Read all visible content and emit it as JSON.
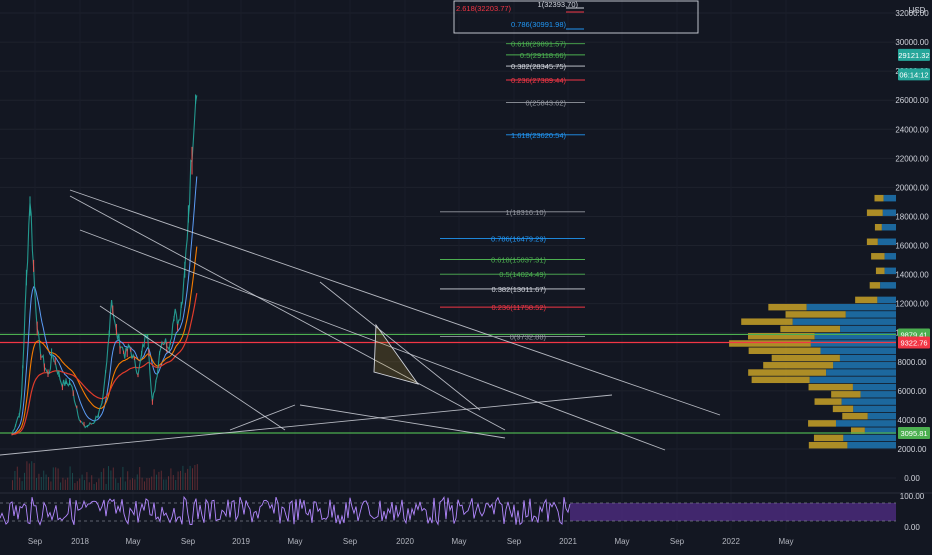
{
  "currency": "USD",
  "colors": {
    "background": "#131722",
    "up": "#26a69a",
    "down": "#ef5350",
    "trendline": "#d1d4dc",
    "support_green": "#4caf50",
    "support_red": "#f23645",
    "ema_red": "#e03b2b",
    "ema_orange": "#f57c00",
    "ema_blue": "#2962ff",
    "fib_blue": "#2196f3",
    "fib_green": "#4caf50",
    "fib_red": "#f23645",
    "vp_gold": "#c9a227",
    "vp_blue": "#1f77b4",
    "rsi": "#b388ff",
    "rsi_band": "#4a2a7a"
  },
  "chart_data": {
    "type": "candlestick",
    "series": [
      {
        "name": "price",
        "x": [
          "2017-08",
          "2017-10",
          "2017-12",
          "2018-01",
          "2018-02",
          "2018-04",
          "2018-05",
          "2018-07",
          "2018-09",
          "2018-11",
          "2018-12",
          "2019-02",
          "2019-04",
          "2019-05",
          "2019-06",
          "2019-07",
          "2019-09",
          "2019-10",
          "2019-12",
          "2020-01",
          "2020-02",
          "2020-03",
          "2020-04",
          "2020-05",
          "2020-07",
          "2020-08",
          "2020-09",
          "2020-10",
          "2020-11",
          "2020-12",
          "2021-01"
        ],
        "values": [
          3000,
          4800,
          19500,
          13000,
          9000,
          7000,
          8500,
          6500,
          6500,
          4000,
          3500,
          3800,
          5000,
          8000,
          12500,
          10000,
          8500,
          9000,
          7200,
          9000,
          10300,
          5000,
          7000,
          9500,
          9200,
          11800,
          10500,
          13000,
          18000,
          23600,
          28000
        ]
      }
    ],
    "y_ticks": [
      "32000.00",
      "30000.00",
      "28000.00",
      "26000.00",
      "24000.00",
      "22000.00",
      "20000.00",
      "18000.00",
      "16000.00",
      "14000.00",
      "12000.00",
      "10000.00",
      "8000.00",
      "6000.00",
      "4000.00",
      "2000.00",
      "0.00"
    ],
    "ylim": [
      -500,
      33000
    ],
    "x_ticks": [
      "Sep",
      "2018",
      "May",
      "Sep",
      "2019",
      "May",
      "Sep",
      "2020",
      "May",
      "Sep",
      "2021",
      "May",
      "Sep",
      "2022",
      "May"
    ],
    "price_badges": [
      {
        "value": 29121.32,
        "label": "29121.32",
        "color": "#26a69a"
      },
      {
        "value": 27780,
        "label": "06:14:12",
        "color": "#26a69a"
      },
      {
        "value": 9879.41,
        "label": "9879.41",
        "color": "#4caf50"
      },
      {
        "value": 9322.76,
        "label": "9322.76",
        "color": "#f23645"
      },
      {
        "value": 3095.81,
        "label": "3095.81",
        "color": "#4caf50"
      }
    ],
    "horizontal_levels": [
      {
        "value": 9879.41,
        "color": "#4caf50"
      },
      {
        "value": 9322.76,
        "color": "#f23645"
      },
      {
        "value": 3095.81,
        "color": "#4caf50"
      }
    ],
    "fib_set_1": [
      {
        "label": "2.618(32203.77)",
        "value": 32203.77,
        "color": "#f23645"
      },
      {
        "label": "1(32393.70)",
        "value": 32393.7,
        "color": "#d1d4dc"
      },
      {
        "label": "0.786(30991.98)",
        "value": 30991.98,
        "color": "#2196f3"
      }
    ],
    "fib_set_2": [
      {
        "label": "0.618(29891.57)",
        "value": 29891.57,
        "color": "#4caf50"
      },
      {
        "label": "0.5(29118.66)",
        "value": 29118.66,
        "color": "#4caf50"
      },
      {
        "label": "0.382(28345.75)",
        "value": 28345.75,
        "color": "#d1d4dc"
      },
      {
        "label": "0.236(27389.44)",
        "value": 27389.44,
        "color": "#f23645"
      },
      {
        "label": "0(25843.62)",
        "value": 25843.62,
        "color": "#9598a1"
      },
      {
        "label": "1.618(23620.54)",
        "value": 23620.54,
        "color": "#2196f3"
      }
    ],
    "fib_set_3": [
      {
        "label": "1(18316.10)",
        "value": 18316.1,
        "color": "#9598a1"
      },
      {
        "label": "0.786(16479.29)",
        "value": 16479.29,
        "color": "#2196f3"
      },
      {
        "label": "0.618(15037.31)",
        "value": 15037.31,
        "color": "#4caf50"
      },
      {
        "label": "0.5(14024.49)",
        "value": 14024.49,
        "color": "#4caf50"
      },
      {
        "label": "0.382(13011.67)",
        "value": 13011.67,
        "color": "#d1d4dc"
      },
      {
        "label": "0.236(11758.52)",
        "value": 11758.52,
        "color": "#f23645"
      },
      {
        "label": "0(9732.88)",
        "value": 9732.88,
        "color": "#9598a1"
      }
    ],
    "rsi_ticks": [
      "100.00",
      "0.00"
    ]
  }
}
